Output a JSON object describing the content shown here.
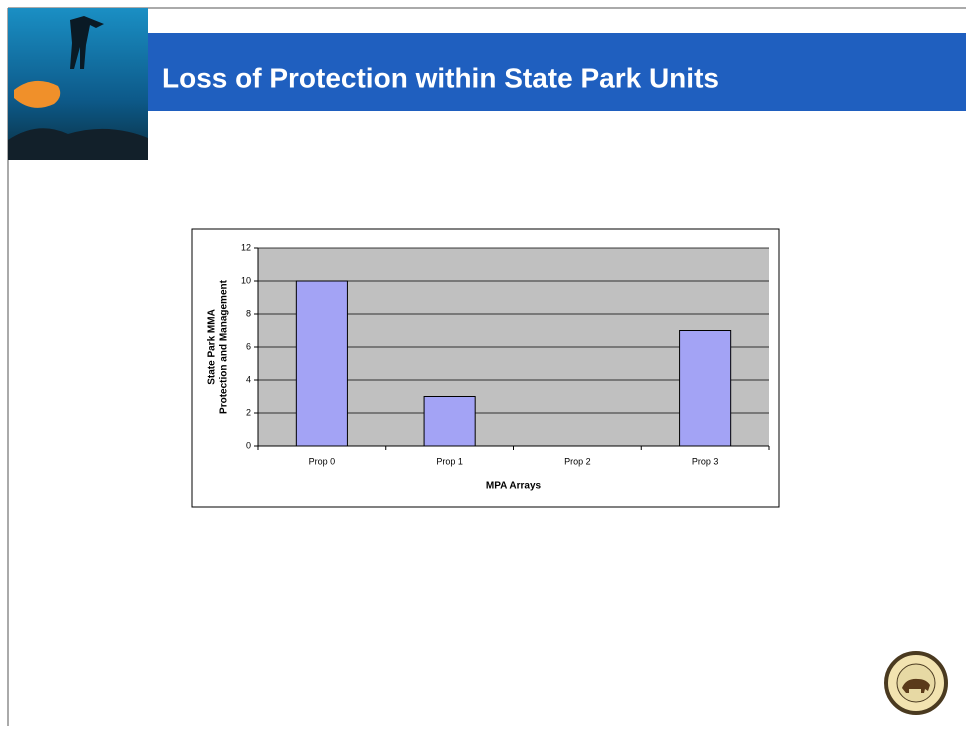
{
  "header": {
    "title": "Loss of Protection within State Park Units"
  },
  "chart_data": {
    "type": "bar",
    "categories": [
      "Prop 0",
      "Prop 1",
      "Prop 2",
      "Prop 3"
    ],
    "values": [
      10,
      3,
      0,
      7
    ],
    "color": "#a3a3f5",
    "x_label": "MPA Arrays",
    "y_label": [
      "State Park MMA",
      "Protection and Management"
    ],
    "ylim": [
      0,
      12
    ],
    "yticks": [
      0,
      2,
      4,
      6,
      8,
      10,
      12
    ],
    "grid": true
  }
}
